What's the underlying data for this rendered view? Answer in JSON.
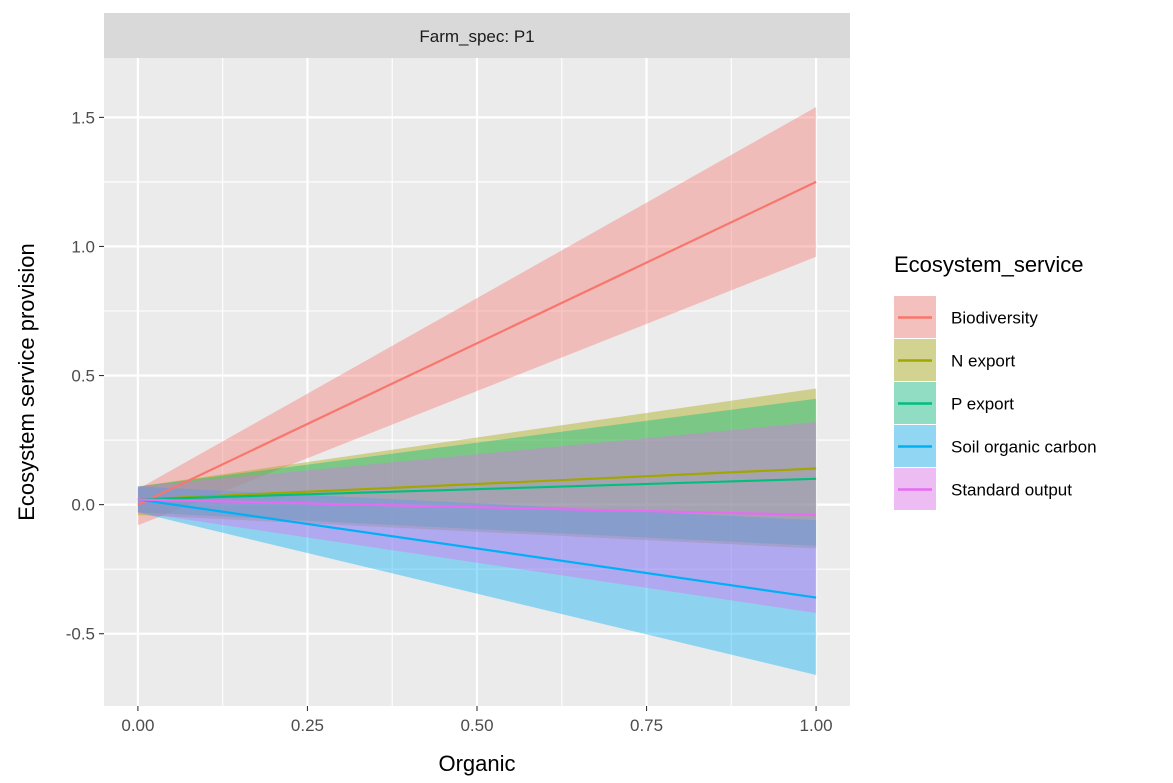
{
  "chart_data": {
    "type": "line",
    "facet_label": "Farm_spec: P1",
    "xlabel": "Organic",
    "ylabel": "Ecosystem service provision",
    "xlim": [
      -0.05,
      1.05
    ],
    "ylim": [
      -0.78,
      1.73
    ],
    "x_ticks": [
      0,
      0.25,
      0.5,
      0.75,
      1.0
    ],
    "x_tick_labels": [
      "0.00",
      "0.25",
      "0.50",
      "0.75",
      "1.00"
    ],
    "y_ticks": [
      -0.5,
      0,
      0.5,
      1.0,
      1.5
    ],
    "y_tick_labels": [
      "-0.5",
      "0.0",
      "0.5",
      "1.0",
      "1.5"
    ],
    "grid": true,
    "legend": {
      "title": "Ecosystem_service",
      "position": "right"
    },
    "x": [
      0,
      1
    ],
    "series": [
      {
        "name": "Biodiversity",
        "color": "#F8766D",
        "fit": [
          0.0,
          1.25
        ],
        "lower": [
          -0.08,
          0.96
        ],
        "upper": [
          0.06,
          1.54
        ]
      },
      {
        "name": "N export",
        "color": "#A3A500",
        "fit": [
          0.02,
          0.14
        ],
        "lower": [
          -0.04,
          -0.17
        ],
        "upper": [
          0.07,
          0.45
        ]
      },
      {
        "name": "P export",
        "color": "#00BF7D",
        "fit": [
          0.02,
          0.1
        ],
        "lower": [
          -0.03,
          -0.16
        ],
        "upper": [
          0.07,
          0.41
        ]
      },
      {
        "name": "Soil organic carbon",
        "color": "#00B0F6",
        "fit": [
          0.02,
          -0.36
        ],
        "lower": [
          -0.03,
          -0.66
        ],
        "upper": [
          0.07,
          -0.06
        ]
      },
      {
        "name": "Standard output",
        "color": "#E76BF3",
        "fit": [
          0.02,
          -0.04
        ],
        "lower": [
          -0.03,
          -0.42
        ],
        "upper": [
          0.07,
          0.32
        ]
      }
    ]
  }
}
